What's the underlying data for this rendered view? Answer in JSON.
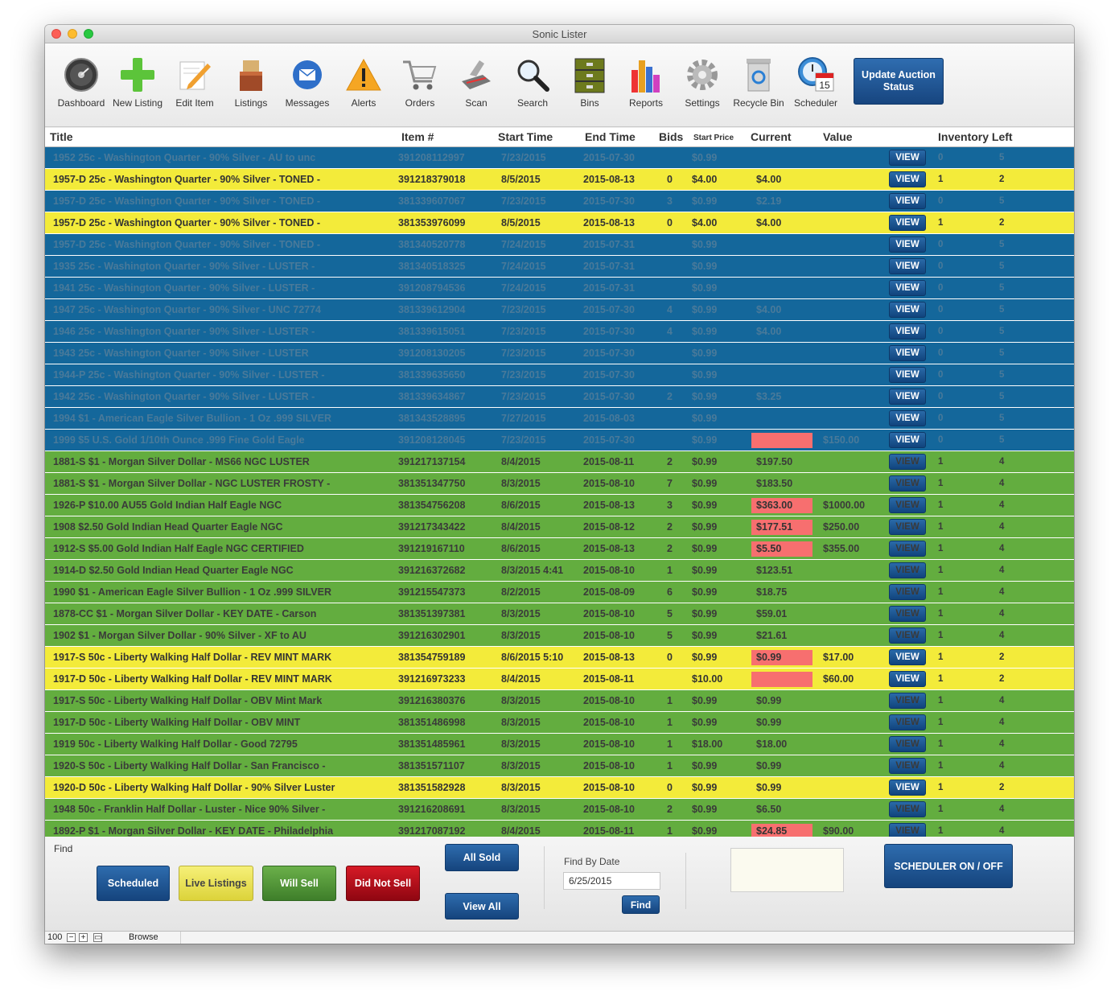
{
  "window": {
    "title": "Sonic Lister"
  },
  "toolbar": {
    "items": [
      {
        "label": "Dashboard",
        "icon": "dashboard-icon"
      },
      {
        "label": "New Listing",
        "icon": "plus-icon"
      },
      {
        "label": "Edit Item",
        "icon": "pencil-icon"
      },
      {
        "label": "Listings",
        "icon": "boxes-icon"
      },
      {
        "label": "Messages",
        "icon": "envelope-icon"
      },
      {
        "label": "Alerts",
        "icon": "warning-icon"
      },
      {
        "label": "Orders",
        "icon": "cart-icon"
      },
      {
        "label": "Scan",
        "icon": "scanner-icon"
      },
      {
        "label": "Search",
        "icon": "magnifier-icon"
      },
      {
        "label": "Bins",
        "icon": "bins-icon"
      },
      {
        "label": "Reports",
        "icon": "bar-chart-icon"
      },
      {
        "label": "Settings",
        "icon": "gear-icon"
      },
      {
        "label": "Recycle Bin",
        "icon": "recycle-bin-icon"
      },
      {
        "label": "Scheduler",
        "icon": "calendar-clock-icon"
      }
    ],
    "calendar_day": "15",
    "update_button": "Update Auction Status"
  },
  "columns": {
    "title": "Title",
    "item": "Item #",
    "start_time": "Start Time",
    "end_time": "End Time",
    "bids": "Bids",
    "start_price": "Start Price",
    "current": "Current",
    "value": "Value",
    "inventory": "Inventory Left"
  },
  "view_label": "VIEW",
  "rows": [
    {
      "color": "blue",
      "title": "1952 25c - Washington Quarter - 90% Silver - AU to unc",
      "item": "391208112997",
      "start": "7/23/2015",
      "end": "2015-07-30",
      "bids": "",
      "sp": "$0.99",
      "cur": "",
      "cur_hl": false,
      "val": "",
      "inv1": "0",
      "inv2": "5"
    },
    {
      "color": "yellow",
      "title": "1957-D 25c - Washington Quarter - 90% Silver - TONED -",
      "item": "391218379018",
      "start": "8/5/2015",
      "end": "2015-08-13",
      "bids": "0",
      "sp": "$4.00",
      "cur": "$4.00",
      "cur_hl": false,
      "val": "",
      "inv1": "1",
      "inv2": "2"
    },
    {
      "color": "blue",
      "title": "1957-D 25c - Washington Quarter - 90% Silver - TONED -",
      "item": "381339607067",
      "start": "7/23/2015",
      "end": "2015-07-30",
      "bids": "3",
      "sp": "$0.99",
      "cur": "$2.19",
      "cur_hl": false,
      "val": "",
      "inv1": "0",
      "inv2": "5"
    },
    {
      "color": "yellow",
      "title": "1957-D 25c - Washington Quarter - 90% Silver - TONED -",
      "item": "381353976099",
      "start": "8/5/2015",
      "end": "2015-08-13",
      "bids": "0",
      "sp": "$4.00",
      "cur": "$4.00",
      "cur_hl": false,
      "val": "",
      "inv1": "1",
      "inv2": "2"
    },
    {
      "color": "blue",
      "title": "1957-D 25c - Washington Quarter - 90% Silver - TONED -",
      "item": "381340520778",
      "start": "7/24/2015",
      "end": "2015-07-31",
      "bids": "",
      "sp": "$0.99",
      "cur": "",
      "cur_hl": false,
      "val": "",
      "inv1": "0",
      "inv2": "5"
    },
    {
      "color": "blue",
      "title": "1935 25c - Washington Quarter - 90% Silver - LUSTER -",
      "item": "381340518325",
      "start": "7/24/2015",
      "end": "2015-07-31",
      "bids": "",
      "sp": "$0.99",
      "cur": "",
      "cur_hl": false,
      "val": "",
      "inv1": "0",
      "inv2": "5"
    },
    {
      "color": "blue",
      "title": "1941 25c - Washington Quarter - 90% Silver - LUSTER -",
      "item": "391208794536",
      "start": "7/24/2015",
      "end": "2015-07-31",
      "bids": "",
      "sp": "$0.99",
      "cur": "",
      "cur_hl": false,
      "val": "",
      "inv1": "0",
      "inv2": "5"
    },
    {
      "color": "blue",
      "title": "1947 25c - Washington Quarter - 90% Silver - UNC 72774",
      "item": "381339612904",
      "start": "7/23/2015",
      "end": "2015-07-30",
      "bids": "4",
      "sp": "$0.99",
      "cur": "$4.00",
      "cur_hl": false,
      "val": "",
      "inv1": "0",
      "inv2": "5"
    },
    {
      "color": "blue",
      "title": "1946 25c - Washington Quarter - 90% Silver - LUSTER -",
      "item": "381339615051",
      "start": "7/23/2015",
      "end": "2015-07-30",
      "bids": "4",
      "sp": "$0.99",
      "cur": "$4.00",
      "cur_hl": false,
      "val": "",
      "inv1": "0",
      "inv2": "5"
    },
    {
      "color": "blue",
      "title": "1943 25c - Washington Quarter - 90% Silver - LUSTER",
      "item": "391208130205",
      "start": "7/23/2015",
      "end": "2015-07-30",
      "bids": "",
      "sp": "$0.99",
      "cur": "",
      "cur_hl": false,
      "val": "",
      "inv1": "0",
      "inv2": "5"
    },
    {
      "color": "blue",
      "title": "1944-P 25c - Washington Quarter - 90% Silver - LUSTER -",
      "item": "381339635650",
      "start": "7/23/2015",
      "end": "2015-07-30",
      "bids": "",
      "sp": "$0.99",
      "cur": "",
      "cur_hl": false,
      "val": "",
      "inv1": "0",
      "inv2": "5"
    },
    {
      "color": "blue",
      "title": "1942 25c - Washington Quarter - 90% Silver - LUSTER -",
      "item": "381339634867",
      "start": "7/23/2015",
      "end": "2015-07-30",
      "bids": "2",
      "sp": "$0.99",
      "cur": "$3.25",
      "cur_hl": false,
      "val": "",
      "inv1": "0",
      "inv2": "5"
    },
    {
      "color": "blue",
      "title": "1994 $1 - American Eagle Silver Bullion - 1 Oz .999 SILVER",
      "item": "381343528895",
      "start": "7/27/2015",
      "end": "2015-08-03",
      "bids": "",
      "sp": "$0.99",
      "cur": "",
      "cur_hl": false,
      "val": "",
      "inv1": "0",
      "inv2": "5"
    },
    {
      "color": "blue",
      "title": "1999 $5 U.S. Gold 1/10th Ounce .999 Fine Gold Eagle",
      "item": "391208128045",
      "start": "7/23/2015",
      "end": "2015-07-30",
      "bids": "",
      "sp": "$0.99",
      "cur": "",
      "cur_hl": true,
      "val": "$150.00",
      "inv1": "0",
      "inv2": "5"
    },
    {
      "color": "green",
      "title": "1881-S $1 - Morgan Silver Dollar - MS66 NGC LUSTER",
      "item": "391217137154",
      "start": "8/4/2015",
      "end": "2015-08-11",
      "bids": "2",
      "sp": "$0.99",
      "cur": "$197.50",
      "cur_hl": false,
      "val": "",
      "inv1": "1",
      "inv2": "4"
    },
    {
      "color": "green",
      "title": "1881-S $1 - Morgan Silver Dollar - NGC LUSTER FROSTY -",
      "item": "381351347750",
      "start": "8/3/2015",
      "end": "2015-08-10",
      "bids": "7",
      "sp": "$0.99",
      "cur": "$183.50",
      "cur_hl": false,
      "val": "",
      "inv1": "1",
      "inv2": "4"
    },
    {
      "color": "green",
      "title": "1926-P $10.00 AU55 Gold Indian Half Eagle NGC",
      "item": "381354756208",
      "start": "8/6/2015",
      "end": "2015-08-13",
      "bids": "3",
      "sp": "$0.99",
      "cur": "$363.00",
      "cur_hl": true,
      "val": "$1000.00",
      "inv1": "1",
      "inv2": "4"
    },
    {
      "color": "green",
      "title": "1908 $2.50 Gold Indian Head Quarter Eagle NGC",
      "item": "391217343422",
      "start": "8/4/2015",
      "end": "2015-08-12",
      "bids": "2",
      "sp": "$0.99",
      "cur": "$177.51",
      "cur_hl": true,
      "val": "$250.00",
      "inv1": "1",
      "inv2": "4"
    },
    {
      "color": "green",
      "title": "1912-S $5.00 Gold Indian Half Eagle NGC CERTIFIED",
      "item": "391219167110",
      "start": "8/6/2015",
      "end": "2015-08-13",
      "bids": "2",
      "sp": "$0.99",
      "cur": "$5.50",
      "cur_hl": true,
      "val": "$355.00",
      "inv1": "1",
      "inv2": "4"
    },
    {
      "color": "green",
      "title": "1914-D $2.50 Gold Indian Head Quarter Eagle NGC",
      "item": "391216372682",
      "start": "8/3/2015 4:41",
      "end": "2015-08-10",
      "bids": "1",
      "sp": "$0.99",
      "cur": "$123.51",
      "cur_hl": false,
      "val": "",
      "inv1": "1",
      "inv2": "4"
    },
    {
      "color": "green",
      "title": "1990 $1 - American Eagle Silver Bullion - 1 Oz .999 SILVER",
      "item": "391215547373",
      "start": "8/2/2015",
      "end": "2015-08-09",
      "bids": "6",
      "sp": "$0.99",
      "cur": "$18.75",
      "cur_hl": false,
      "val": "",
      "inv1": "1",
      "inv2": "4"
    },
    {
      "color": "green",
      "title": "1878-CC $1 - Morgan Silver Dollar - KEY DATE - Carson",
      "item": "381351397381",
      "start": "8/3/2015",
      "end": "2015-08-10",
      "bids": "5",
      "sp": "$0.99",
      "cur": "$59.01",
      "cur_hl": false,
      "val": "",
      "inv1": "1",
      "inv2": "4"
    },
    {
      "color": "green",
      "title": "1902 $1 - Morgan Silver Dollar - 90% Silver - XF to AU",
      "item": "391216302901",
      "start": "8/3/2015",
      "end": "2015-08-10",
      "bids": "5",
      "sp": "$0.99",
      "cur": "$21.61",
      "cur_hl": false,
      "val": "",
      "inv1": "1",
      "inv2": "4"
    },
    {
      "color": "yellow",
      "title": "1917-S 50c - Liberty Walking Half Dollar - REV MINT MARK",
      "item": "381354759189",
      "start": "8/6/2015 5:10",
      "end": "2015-08-13",
      "bids": "0",
      "sp": "$0.99",
      "cur": "$0.99",
      "cur_hl": true,
      "val": "$17.00",
      "inv1": "1",
      "inv2": "2"
    },
    {
      "color": "yellow",
      "title": "1917-D 50c - Liberty Walking Half Dollar - REV MINT MARK",
      "item": "391216973233",
      "start": "8/4/2015",
      "end": "2015-08-11",
      "bids": "",
      "sp": "$10.00",
      "cur": "",
      "cur_hl": true,
      "val": "$60.00",
      "inv1": "1",
      "inv2": "2"
    },
    {
      "color": "green",
      "title": "1917-S 50c - Liberty Walking Half Dollar - OBV Mint Mark",
      "item": "391216380376",
      "start": "8/3/2015",
      "end": "2015-08-10",
      "bids": "1",
      "sp": "$0.99",
      "cur": "$0.99",
      "cur_hl": false,
      "val": "",
      "inv1": "1",
      "inv2": "4"
    },
    {
      "color": "green",
      "title": "1917-D 50c - Liberty Walking Half Dollar - OBV MINT",
      "item": "381351486998",
      "start": "8/3/2015",
      "end": "2015-08-10",
      "bids": "1",
      "sp": "$0.99",
      "cur": "$0.99",
      "cur_hl": false,
      "val": "",
      "inv1": "1",
      "inv2": "4"
    },
    {
      "color": "green",
      "title": "1919 50c - Liberty Walking Half Dollar - Good 72795",
      "item": "381351485961",
      "start": "8/3/2015",
      "end": "2015-08-10",
      "bids": "1",
      "sp": "$18.00",
      "cur": "$18.00",
      "cur_hl": false,
      "val": "",
      "inv1": "1",
      "inv2": "4"
    },
    {
      "color": "green",
      "title": "1920-S 50c - Liberty Walking Half Dollar - San Francisco -",
      "item": "381351571107",
      "start": "8/3/2015",
      "end": "2015-08-10",
      "bids": "1",
      "sp": "$0.99",
      "cur": "$0.99",
      "cur_hl": false,
      "val": "",
      "inv1": "1",
      "inv2": "4"
    },
    {
      "color": "yellow",
      "title": "1920-D 50c - Liberty Walking Half Dollar - 90% Silver Luster",
      "item": "381351582928",
      "start": "8/3/2015",
      "end": "2015-08-10",
      "bids": "0",
      "sp": "$0.99",
      "cur": "$0.99",
      "cur_hl": false,
      "val": "",
      "inv1": "1",
      "inv2": "2"
    },
    {
      "color": "green",
      "title": "1948 50c - Franklin Half Dollar - Luster - Nice 90% Silver -",
      "item": "391216208691",
      "start": "8/3/2015",
      "end": "2015-08-10",
      "bids": "2",
      "sp": "$0.99",
      "cur": "$6.50",
      "cur_hl": false,
      "val": "",
      "inv1": "1",
      "inv2": "4"
    },
    {
      "color": "green",
      "title": "1892-P $1 - Morgan Silver Dollar - KEY DATE - Philadelphia",
      "item": "391217087192",
      "start": "8/4/2015",
      "end": "2015-08-11",
      "bids": "1",
      "sp": "$0.99",
      "cur": "$24.85",
      "cur_hl": true,
      "val": "$90.00",
      "inv1": "1",
      "inv2": "4"
    }
  ],
  "footer": {
    "find_label": "Find",
    "scheduled": "Scheduled",
    "live_listings": "Live Listings",
    "will_sell": "Will Sell",
    "did_not_sell": "Did Not Sell",
    "all_sold": "All Sold",
    "view_all": "View All",
    "find_by_date_label": "Find By Date",
    "date_value": "6/25/2015",
    "find_button": "Find",
    "scheduler_toggle": "SCHEDULER ON / OFF"
  },
  "statusbar": {
    "zoom": "100",
    "mode": "Browse"
  }
}
